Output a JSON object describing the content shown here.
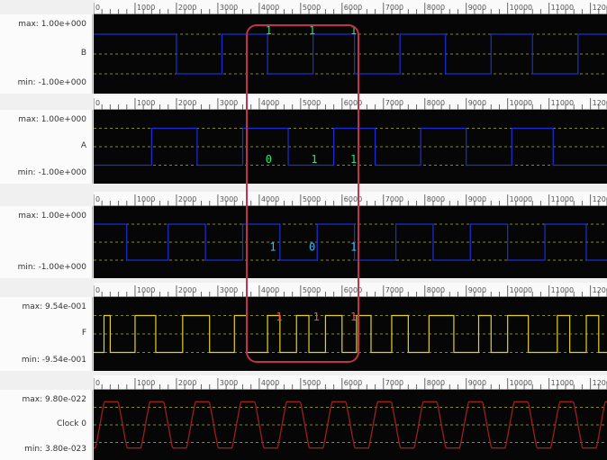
{
  "ruler_ticks": [
    "0",
    "1000",
    "2000",
    "3000",
    "4000",
    "5000",
    "6000",
    "7000",
    "8000",
    "9000",
    "10000",
    "11000",
    "12000"
  ],
  "colors": {
    "plot_bg": "#060606",
    "grid": "#d8d84a",
    "trace_blue": "#1b2fd6",
    "trace_yellow": "#e2cf2e",
    "trace_red": "#9a1f1f",
    "digit_green": "#2fe07a",
    "digit_cyan": "#3fb8ff",
    "digit_red": "#ff4b4b",
    "highlight": "#c0334a"
  },
  "channels": [
    {
      "id": "B",
      "max": "max: 1.00e+000",
      "name": "B",
      "min": "min: -1.00e+000",
      "annotations": [
        {
          "value": "1",
          "t": 4150
        },
        {
          "value": "1",
          "t": 5200
        },
        {
          "value": "1",
          "t": 6200
        }
      ]
    },
    {
      "id": "A",
      "max": "max: 1.00e+000",
      "name": "A",
      "min": "min: -1.00e+000",
      "annotations": [
        {
          "value": "0",
          "t": 4150
        },
        {
          "value": "1",
          "t": 5250
        },
        {
          "value": "1",
          "t": 6200
        }
      ]
    },
    {
      "id": "unnamed",
      "max": "max: 1.00e+000",
      "name": "",
      "min": "min: -1.00e+000",
      "annotations": [
        {
          "value": "1",
          "t": 4250
        },
        {
          "value": "0",
          "t": 5200
        },
        {
          "value": "1",
          "t": 6200
        }
      ]
    },
    {
      "id": "F",
      "max": "max: 9.54e-001",
      "name": "F",
      "min": "min: -9.54e-001",
      "annotations": [
        {
          "value": "1",
          "t": 4400
        },
        {
          "value": "1",
          "t": 5300
        },
        {
          "value": "1",
          "t": 6200
        }
      ]
    },
    {
      "id": "clock0",
      "max": "max: 9.80e-022",
      "name": "Clock 0",
      "min": "min: 3.80e-023",
      "annotations": []
    }
  ]
}
